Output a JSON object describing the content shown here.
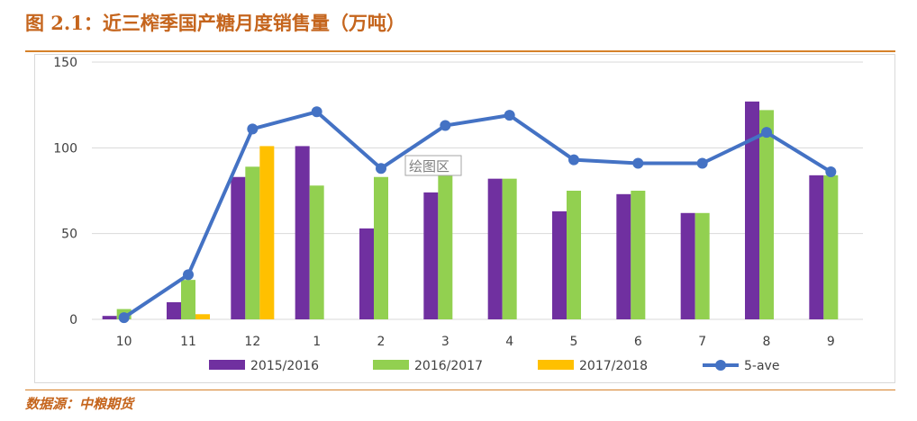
{
  "header": {
    "title": "图 2.1：近三榨季国产糖月度销售量（万吨）"
  },
  "footer": {
    "source": "数据源：中粮期货"
  },
  "tooltip": {
    "label": "绘图区"
  },
  "colors": {
    "series_2015": "#7030a0",
    "series_2016": "#92d050",
    "series_2017": "#ffc000",
    "line_5ave": "#4472c4",
    "gridline": "#d9d9d9",
    "accent": "#c5651d"
  },
  "chart_data": {
    "type": "bar",
    "title": "图 2.1：近三榨季国产糖月度销售量（万吨）",
    "categories": [
      "10",
      "11",
      "12",
      "1",
      "2",
      "3",
      "4",
      "5",
      "6",
      "7",
      "8",
      "9"
    ],
    "ylim": [
      0,
      150
    ],
    "yticks": [
      0,
      50,
      100,
      150
    ],
    "grid": true,
    "legend_position": "bottom",
    "series": [
      {
        "name": "2015/2016",
        "kind": "bar",
        "values": [
          2,
          10,
          83,
          101,
          53,
          74,
          82,
          63,
          73,
          62,
          127,
          84
        ]
      },
      {
        "name": "2016/2017",
        "kind": "bar",
        "values": [
          6,
          23,
          89,
          78,
          83,
          87,
          82,
          75,
          75,
          62,
          122,
          84
        ]
      },
      {
        "name": "2017/2018",
        "kind": "bar",
        "values": [
          0,
          3,
          101,
          null,
          null,
          null,
          null,
          null,
          null,
          null,
          null,
          null
        ]
      },
      {
        "name": "5-ave",
        "kind": "line",
        "values": [
          1,
          26,
          111,
          121,
          88,
          113,
          119,
          93,
          91,
          91,
          109,
          86
        ]
      }
    ]
  }
}
